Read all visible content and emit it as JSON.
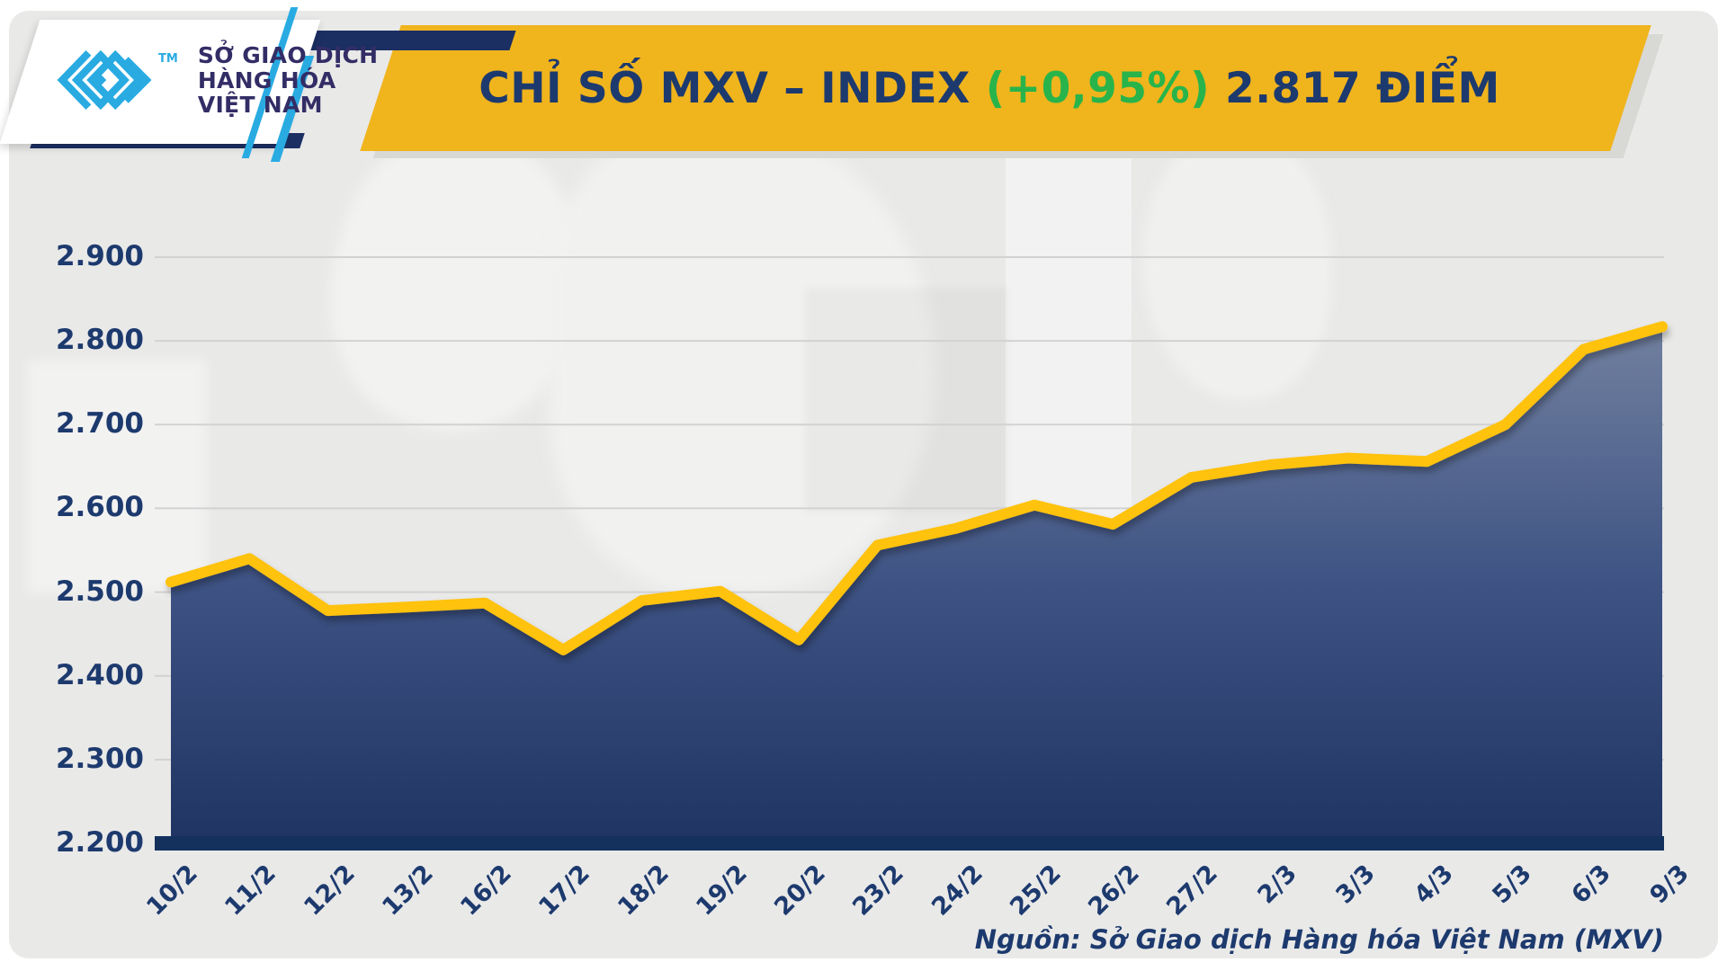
{
  "header": {
    "logo": {
      "tm": "TM",
      "name_lines": [
        "SỞ GIAO DỊCH",
        "HÀNG HÓA",
        "VIỆT NAM"
      ]
    },
    "title": {
      "prefix": "CHỈ SỐ MXV – INDEX ",
      "change": "(+0,95%)",
      "suffix": " 2.817 ĐIỂM"
    }
  },
  "footer": {
    "source": "Nguồn: Sở Giao dịch Hàng hóa Việt Nam (MXV)"
  },
  "colors": {
    "banner_yellow": "#F0B41D",
    "line_yellow": "#FFC20E",
    "navy": "#1D3A6E",
    "green": "#28B44B",
    "cyan": "#29ABE2",
    "axis_navy": "#14315E",
    "grid_gray": "#D2D2D2",
    "fill_top": "#71809F",
    "fill_mid": "#3E5384",
    "fill_bottom": "#1F3462",
    "logo_text_navy": "#332D66"
  },
  "chart_data": {
    "type": "area",
    "title": "CHỈ SỐ MXV – INDEX (+0,95%) 2.817 ĐIỂM",
    "x": [
      "10/2",
      "11/2",
      "12/2",
      "13/2",
      "16/2",
      "17/2",
      "18/2",
      "19/2",
      "20/2",
      "23/2",
      "24/2",
      "25/2",
      "26/2",
      "27/2",
      "2/3",
      "3/3",
      "4/3",
      "5/3",
      "6/3",
      "9/3"
    ],
    "values": [
      2512,
      2540,
      2478,
      2482,
      2487,
      2431,
      2490,
      2501,
      2443,
      2556,
      2576,
      2604,
      2581,
      2637,
      2652,
      2660,
      2656,
      2700,
      2790,
      2817
    ],
    "ylim": [
      2200,
      2900
    ],
    "ytick_step": 100,
    "ytick_labels": [
      "2.200",
      "2.300",
      "2.400",
      "2.500",
      "2.600",
      "2.700",
      "2.800",
      "2.900"
    ],
    "xlabel": "",
    "ylabel": "",
    "grid": "horizontal-only",
    "legend": "none",
    "last_value_label": "2.817",
    "change_label": "+0,95%"
  }
}
